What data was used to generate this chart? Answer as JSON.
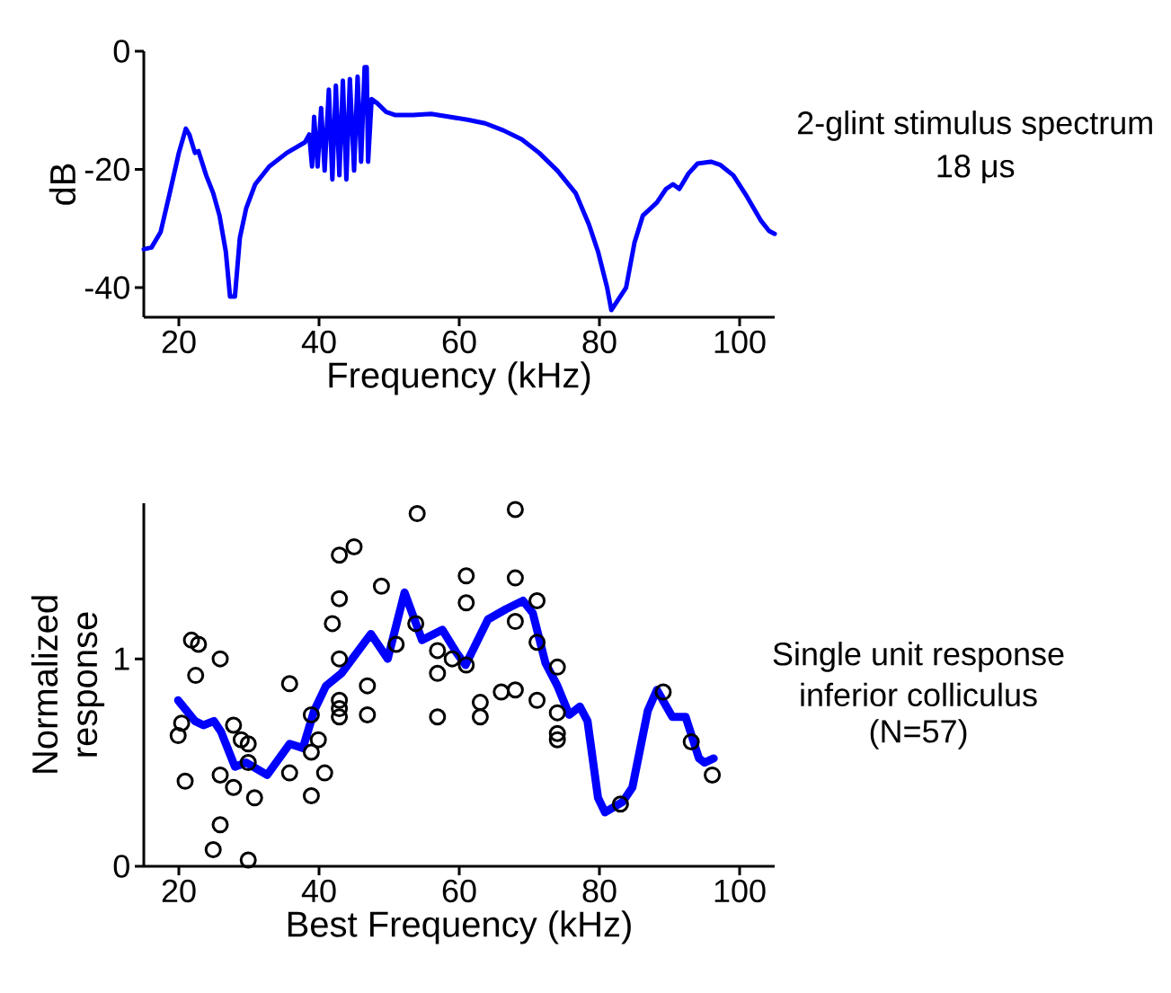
{
  "chart_data": [
    {
      "type": "line",
      "xlabel": "Frequency (kHz)",
      "ylabel": "dB",
      "annotations": [
        "2-glint stimulus spectrum",
        "18 μs"
      ],
      "xlim": [
        15,
        105
      ],
      "ylim": [
        -45,
        0
      ],
      "xticks": [
        20,
        40,
        60,
        80,
        100
      ],
      "yticks": [
        0,
        -20,
        -40
      ],
      "series": [
        {
          "color": "#0000ff",
          "x": [
            15,
            16.1,
            17.4,
            18.7,
            20,
            21.0,
            21.5,
            22.3,
            22.8,
            23.9,
            24.9,
            25.8,
            26.7,
            27.3,
            27.6,
            28.0,
            28.7,
            29.6,
            30.9,
            32.9,
            35.4,
            38.0,
            38.6,
            39.0,
            39.3,
            39.8,
            40.3,
            40.8,
            41.4,
            41.9,
            42.4,
            42.9,
            43.4,
            43.9,
            44.4,
            45.0,
            45.5,
            46.0,
            46.5,
            46.8,
            47.0,
            47.5,
            48.3,
            49.6,
            50.9,
            53.4,
            56.0,
            58.6,
            61.2,
            63.7,
            66.3,
            68.9,
            71.4,
            74.0,
            76.6,
            78.5,
            79.8,
            81.1,
            81.7,
            82.5,
            83.3,
            83.8,
            85.0,
            86.2,
            88.2,
            89.5,
            90.5,
            91.4,
            92.7,
            94.0,
            95.9,
            97.2,
            99.1,
            101.0,
            103.0,
            104.2,
            105
          ],
          "values": [
            -33.5,
            -33.2,
            -30.6,
            -24.0,
            -17.2,
            -13.1,
            -14.1,
            -17.2,
            -16.9,
            -21.0,
            -24.0,
            -27.8,
            -33.9,
            -41.5,
            null,
            -41.5,
            -31.6,
            -26.6,
            -22.5,
            -19.5,
            -17.2,
            -15.4,
            -14.1,
            -19.5,
            -11.1,
            -19.5,
            -9.6,
            -20.2,
            -6.5,
            -21.7,
            -5.8,
            -21.0,
            -5.0,
            -21.7,
            -4.7,
            -20.2,
            -4.3,
            -18.7,
            -2.7,
            -2.7,
            -18.7,
            -8.1,
            -8.8,
            -10.3,
            -10.8,
            -10.8,
            -10.6,
            -11.1,
            -11.6,
            -12.2,
            -13.4,
            -14.9,
            -17.2,
            -20.2,
            -24.0,
            -29.3,
            -33.9,
            -40.0,
            -43.8,
            null,
            null,
            -40.0,
            -32.4,
            -27.8,
            -25.6,
            -23.3,
            -22.5,
            -23.3,
            -20.7,
            -19.0,
            -18.7,
            -19.2,
            -21.0,
            -24.5,
            -28.6,
            -30.4,
            -30.9
          ]
        }
      ]
    },
    {
      "type": "scatter",
      "xlabel": "Best Frequency (kHz)",
      "ylabel": "Normalized response",
      "annotations": [
        "Single unit response",
        "inferior colliculus",
        "(N=57)"
      ],
      "xlim": [
        15,
        105
      ],
      "ylim": [
        0,
        1.75
      ],
      "xticks": [
        20,
        40,
        60,
        80,
        100
      ],
      "yticks": [
        0,
        1
      ],
      "series": [
        {
          "type": "line",
          "color": "#0000ff",
          "x": [
            19.9,
            22.3,
            23.5,
            25.0,
            26.0,
            28.0,
            29.6,
            32.6,
            35.8,
            37.7,
            39.3,
            41.0,
            43.2,
            47.4,
            49.8,
            52.2,
            54.7,
            57.6,
            59.6,
            60.9,
            64.1,
            66.7,
            69.1,
            70.5,
            72.3,
            74.0,
            75.7,
            77.2,
            78.3,
            79.8,
            80.8,
            83.3,
            84.7,
            86.9,
            88.2,
            90.4,
            92.3,
            94.2,
            95.0,
            96.3
          ],
          "values": [
            0.8,
            0.7,
            0.68,
            0.7,
            0.65,
            0.48,
            0.5,
            0.44,
            0.59,
            0.57,
            0.75,
            0.87,
            0.93,
            1.12,
            1.0,
            1.32,
            1.09,
            1.14,
            1.03,
            0.97,
            1.19,
            1.24,
            1.28,
            1.22,
            0.98,
            0.87,
            0.73,
            0.77,
            0.7,
            0.33,
            0.26,
            0.31,
            0.38,
            0.75,
            0.85,
            0.72,
            0.72,
            0.52,
            0.5,
            0.52
          ]
        },
        {
          "color": "#000000",
          "marker": "circle",
          "x": [
            20.4,
            19.9,
            20.9,
            21.8,
            22.8,
            22.4,
            25.9,
            27.8,
            28.9,
            29.9,
            29.9,
            25.9,
            27.8,
            30.8,
            25.9,
            24.9,
            29.9,
            35.8,
            35.8,
            38.9,
            39.9,
            38.9,
            40.8,
            38.9,
            41.9,
            42.9,
            45.0,
            42.9,
            42.9,
            42.9,
            42.9,
            42.9,
            48.9,
            46.9,
            46.9,
            51.0,
            54.0,
            53.8,
            56.9,
            56.9,
            56.9,
            59.0,
            61.0,
            61.0,
            61.0,
            63.0,
            63.0,
            66.0,
            68.0,
            68.0,
            68.0,
            68.0,
            71.1,
            71.1,
            71.1,
            74.0,
            74.0,
            74.0,
            74.0,
            83.0,
            89.1,
            93.1,
            96.1
          ],
          "values": [
            0.69,
            0.63,
            0.41,
            1.09,
            1.07,
            0.92,
            1.0,
            0.68,
            0.61,
            0.59,
            0.5,
            0.44,
            0.38,
            0.33,
            0.2,
            0.08,
            0.03,
            0.88,
            0.45,
            0.73,
            0.61,
            0.55,
            0.45,
            0.34,
            1.17,
            1.5,
            1.54,
            1.29,
            1.0,
            0.8,
            0.76,
            0.72,
            1.35,
            0.87,
            0.73,
            1.07,
            1.7,
            1.17,
            1.04,
            0.93,
            0.72,
            1.0,
            1.4,
            1.27,
            0.97,
            0.79,
            0.72,
            0.84,
            1.72,
            1.39,
            1.18,
            0.85,
            1.28,
            1.08,
            0.8,
            0.96,
            0.74,
            0.64,
            0.61,
            0.3,
            0.84,
            0.6,
            0.44
          ]
        }
      ]
    }
  ]
}
